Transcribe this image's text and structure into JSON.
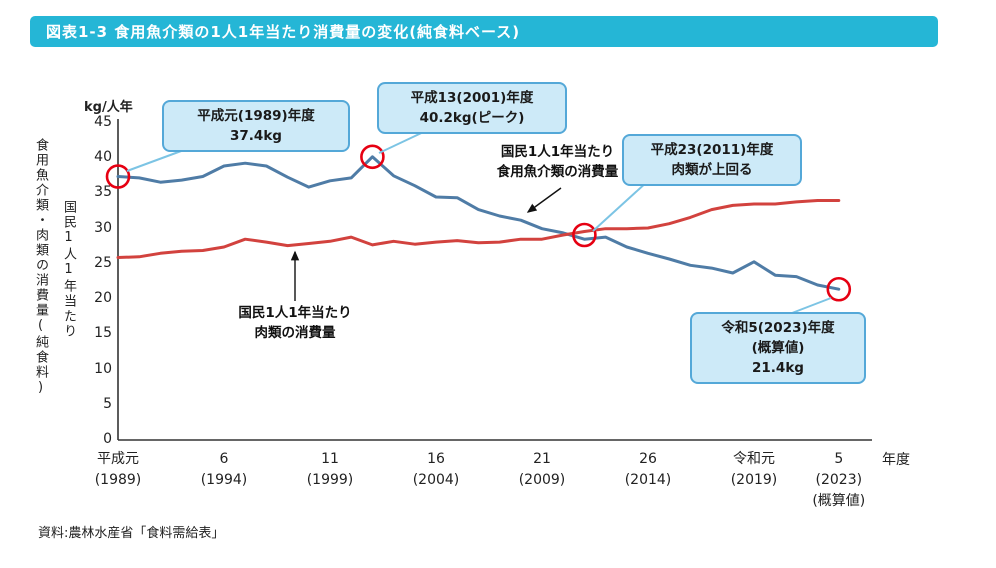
{
  "header": {
    "title": "図表1-3 食用魚介類の1人1年当たり消費量の変化(純食料ベース)"
  },
  "source": "資料:農林水産省「食料需給表」",
  "axis_labels": {
    "left_outer": "食用魚介類・肉類の消費量(純食料)",
    "left_inner": "国民1人1年当たり"
  },
  "chart_data": {
    "type": "line",
    "unit_label": "kg/人年",
    "x_axis_suffix": "年度",
    "ylim": [
      0,
      45
    ],
    "y_ticks": [
      0,
      5,
      10,
      15,
      20,
      25,
      30,
      35,
      40,
      45
    ],
    "years": [
      1989,
      1990,
      1991,
      1992,
      1993,
      1994,
      1995,
      1996,
      1997,
      1998,
      1999,
      2000,
      2001,
      2002,
      2003,
      2004,
      2005,
      2006,
      2007,
      2008,
      2009,
      2010,
      2011,
      2012,
      2013,
      2014,
      2015,
      2016,
      2017,
      2018,
      2019,
      2020,
      2021,
      2022,
      2023
    ],
    "series": [
      {
        "name": "食用魚介類",
        "color": "#4f7ca6",
        "values": [
          37.4,
          37.2,
          36.6,
          36.9,
          37.4,
          38.9,
          39.3,
          38.9,
          37.3,
          35.9,
          36.8,
          37.2,
          40.2,
          37.5,
          36.1,
          34.5,
          34.4,
          32.7,
          31.8,
          31.2,
          30.0,
          29.4,
          28.5,
          28.8,
          27.4,
          26.5,
          25.7,
          24.8,
          24.4,
          23.7,
          25.3,
          23.4,
          23.2,
          22.0,
          21.4
        ]
      },
      {
        "name": "肉類",
        "color": "#d2423e",
        "values": [
          25.9,
          26.0,
          26.5,
          26.8,
          26.9,
          27.4,
          28.5,
          28.1,
          27.6,
          27.9,
          28.2,
          28.8,
          27.7,
          28.2,
          27.8,
          28.1,
          28.3,
          28.0,
          28.1,
          28.5,
          28.5,
          29.1,
          29.6,
          30.0,
          30.0,
          30.1,
          30.7,
          31.6,
          32.7,
          33.3,
          33.5,
          33.5,
          33.8,
          34.0,
          34.0
        ]
      }
    ],
    "x_ticks": [
      {
        "year": 1989,
        "lines": [
          "平成元",
          "(1989)"
        ]
      },
      {
        "year": 1994,
        "lines": [
          "6",
          "(1994)"
        ]
      },
      {
        "year": 1999,
        "lines": [
          "11",
          "(1999)"
        ]
      },
      {
        "year": 2004,
        "lines": [
          "16",
          "(2004)"
        ]
      },
      {
        "year": 2009,
        "lines": [
          "21",
          "(2009)"
        ]
      },
      {
        "year": 2014,
        "lines": [
          "26",
          "(2014)"
        ]
      },
      {
        "year": 2019,
        "lines": [
          "令和元",
          "(2019)"
        ]
      },
      {
        "year": 2023,
        "lines": [
          "5",
          "(2023)",
          "(概算値)"
        ]
      }
    ],
    "highlights": [
      {
        "year": 1989,
        "value": 37.4
      },
      {
        "year": 2001,
        "value": 40.2
      },
      {
        "year": 2011,
        "value": 29.1
      },
      {
        "year": 2023,
        "value": 21.4
      }
    ],
    "highlight_color": "#e60012",
    "annotations": {
      "callouts": [
        {
          "lines": [
            "平成元(1989)年度",
            "37.4kg"
          ]
        },
        {
          "lines": [
            "平成13(2001)年度",
            "40.2kg(ピーク)"
          ]
        },
        {
          "lines": [
            "平成23(2011)年度",
            "肉類が上回る"
          ]
        },
        {
          "lines": [
            "令和5(2023)年度",
            "(概算値)",
            "21.4kg"
          ]
        }
      ],
      "series_labels": {
        "fish": [
          "国民1人1年当たり",
          "食用魚介類の消費量"
        ],
        "meat": [
          "国民1人1年当たり",
          "肉類の消費量"
        ]
      }
    }
  }
}
